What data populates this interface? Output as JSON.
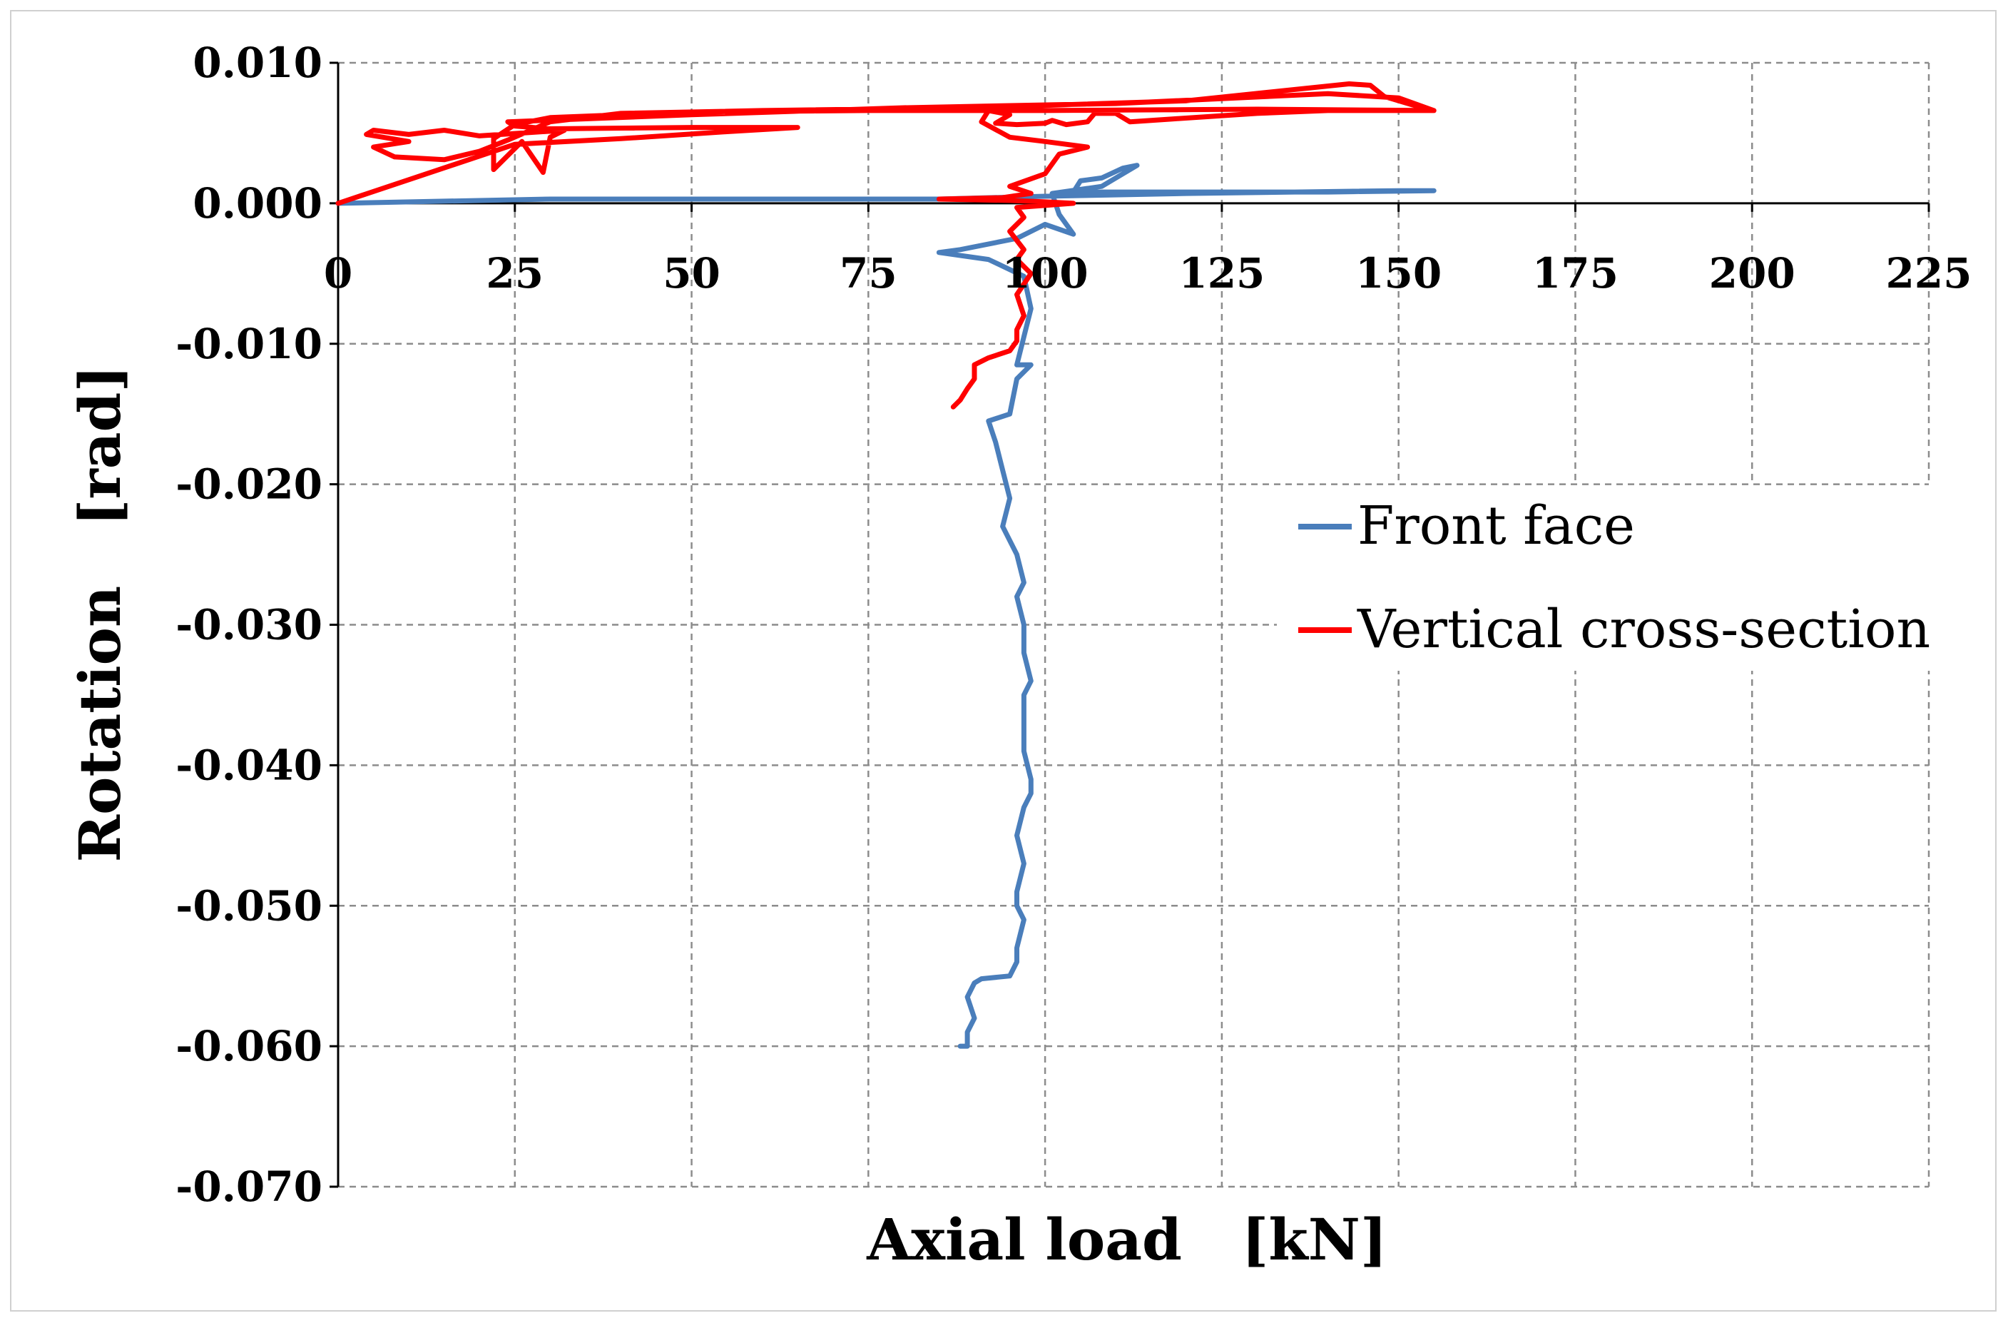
{
  "chart_data": {
    "type": "line",
    "title": "",
    "xlabel": "Axial load   [kN]",
    "ylabel": "Rotation   [rad]",
    "xlim": [
      0,
      225
    ],
    "ylim": [
      -0.07,
      0.01
    ],
    "x_ticks": [
      "0",
      "25",
      "50",
      "75",
      "100",
      "125",
      "150",
      "175",
      "200",
      "225"
    ],
    "y_ticks": [
      "0.010",
      "0.000",
      "-0.010",
      "-0.020",
      "-0.030",
      "-0.040",
      "-0.050",
      "-0.060",
      "-0.070"
    ],
    "grid": true,
    "legend_position": "right",
    "series": [
      {
        "name": "Front face",
        "color": "#4a7ebb",
        "points": [
          [
            0,
            0.0
          ],
          [
            30,
            0.0003
          ],
          [
            60,
            0.0003
          ],
          [
            85,
            0.0003
          ],
          [
            100,
            0.0005
          ],
          [
            120,
            0.0007
          ],
          [
            150,
            0.0009
          ],
          [
            155,
            0.0009
          ],
          [
            140,
            0.0008
          ],
          [
            110,
            0.0008
          ],
          [
            104,
            0.0008
          ],
          [
            105,
            0.0016
          ],
          [
            108,
            0.0018
          ],
          [
            111,
            0.0025
          ],
          [
            113,
            0.0027
          ],
          [
            108,
            0.0012
          ],
          [
            101,
            0.0007
          ],
          [
            102,
            -0.0008
          ],
          [
            104,
            -0.0022
          ],
          [
            100,
            -0.0015
          ],
          [
            96,
            -0.0025
          ],
          [
            88,
            -0.0033
          ],
          [
            85,
            -0.0035
          ],
          [
            92,
            -0.004
          ],
          [
            97,
            -0.0052
          ],
          [
            98,
            -0.0075
          ],
          [
            97,
            -0.0095
          ],
          [
            96,
            -0.0115
          ],
          [
            98,
            -0.0115
          ],
          [
            96,
            -0.0125
          ],
          [
            95,
            -0.015
          ],
          [
            92,
            -0.0155
          ],
          [
            93,
            -0.017
          ],
          [
            94,
            -0.019
          ],
          [
            95,
            -0.021
          ],
          [
            94,
            -0.023
          ],
          [
            96,
            -0.025
          ],
          [
            97,
            -0.027
          ],
          [
            96,
            -0.028
          ],
          [
            97,
            -0.03
          ],
          [
            97,
            -0.032
          ],
          [
            98,
            -0.034
          ],
          [
            97,
            -0.035
          ],
          [
            97,
            -0.037
          ],
          [
            97,
            -0.039
          ],
          [
            98,
            -0.041
          ],
          [
            98,
            -0.042
          ],
          [
            97,
            -0.043
          ],
          [
            96,
            -0.045
          ],
          [
            97,
            -0.047
          ],
          [
            96,
            -0.049
          ],
          [
            96,
            -0.05
          ],
          [
            97,
            -0.051
          ],
          [
            96,
            -0.053
          ],
          [
            96,
            -0.054
          ],
          [
            95,
            -0.055
          ],
          [
            91,
            -0.0552
          ],
          [
            90,
            -0.0555
          ],
          [
            89,
            -0.0565
          ],
          [
            90,
            -0.058
          ],
          [
            89,
            -0.059
          ],
          [
            89,
            -0.06
          ],
          [
            88,
            -0.06
          ]
        ]
      },
      {
        "name": "Vertical cross-section",
        "color": "#ff0000",
        "points": [
          [
            0,
            0.0
          ],
          [
            25,
            0.0042
          ],
          [
            40,
            0.0046
          ],
          [
            55,
            0.0051
          ],
          [
            65,
            0.0054
          ],
          [
            50,
            0.0054
          ],
          [
            30,
            0.0053
          ],
          [
            25,
            0.0055
          ],
          [
            24,
            0.0058
          ],
          [
            50,
            0.0063
          ],
          [
            80,
            0.0068
          ],
          [
            110,
            0.0071
          ],
          [
            140,
            0.0078
          ],
          [
            150,
            0.0075
          ],
          [
            155,
            0.0066
          ],
          [
            130,
            0.0067
          ],
          [
            100,
            0.0066
          ],
          [
            75,
            0.0066
          ],
          [
            50,
            0.0065
          ],
          [
            30,
            0.0061
          ],
          [
            25,
            0.0056
          ],
          [
            22,
            0.0046
          ],
          [
            22,
            0.0024
          ],
          [
            26,
            0.0044
          ],
          [
            29,
            0.0022
          ],
          [
            30,
            0.0047
          ],
          [
            32,
            0.0052
          ],
          [
            20,
            0.0048
          ],
          [
            15,
            0.0052
          ],
          [
            10,
            0.0049
          ],
          [
            5,
            0.0052
          ],
          [
            4,
            0.0049
          ],
          [
            10,
            0.0044
          ],
          [
            5,
            0.004
          ],
          [
            8,
            0.0033
          ],
          [
            15,
            0.0031
          ],
          [
            20,
            0.0037
          ],
          [
            24,
            0.0045
          ],
          [
            30,
            0.0058
          ],
          [
            40,
            0.0064
          ],
          [
            60,
            0.0066
          ],
          [
            90,
            0.0068
          ],
          [
            120,
            0.0073
          ],
          [
            143,
            0.0085
          ],
          [
            146,
            0.0084
          ],
          [
            148,
            0.0076
          ],
          [
            152,
            0.007
          ],
          [
            155,
            0.0066
          ],
          [
            140,
            0.0066
          ],
          [
            130,
            0.0064
          ],
          [
            118,
            0.006
          ],
          [
            112,
            0.0058
          ],
          [
            110,
            0.0064
          ],
          [
            107,
            0.0064
          ],
          [
            106,
            0.0058
          ],
          [
            103,
            0.0056
          ],
          [
            101,
            0.0059
          ],
          [
            100,
            0.0057
          ],
          [
            96,
            0.0056
          ],
          [
            93,
            0.0057
          ],
          [
            95,
            0.0063
          ],
          [
            92,
            0.0066
          ],
          [
            91,
            0.0058
          ],
          [
            95,
            0.0047
          ],
          [
            100,
            0.0044
          ],
          [
            106,
            0.004
          ],
          [
            102,
            0.0035
          ],
          [
            100,
            0.0021
          ],
          [
            95,
            0.0012
          ],
          [
            98,
            0.0007
          ],
          [
            94,
            0.0004
          ],
          [
            85,
            0.0003
          ],
          [
            95,
            0.0002
          ],
          [
            100,
            0.0001
          ],
          [
            104,
            0.0
          ],
          [
            96,
            -0.0003
          ],
          [
            97,
            -0.001
          ],
          [
            95,
            -0.002
          ],
          [
            97,
            -0.0033
          ],
          [
            96,
            -0.004
          ],
          [
            98,
            -0.005
          ],
          [
            96,
            -0.0065
          ],
          [
            97,
            -0.008
          ],
          [
            96,
            -0.009
          ],
          [
            96,
            -0.0098
          ],
          [
            95,
            -0.0105
          ],
          [
            92,
            -0.011
          ],
          [
            90,
            -0.0115
          ],
          [
            90,
            -0.0125
          ],
          [
            89,
            -0.0132
          ],
          [
            88,
            -0.014
          ],
          [
            87,
            -0.0145
          ]
        ]
      }
    ]
  }
}
